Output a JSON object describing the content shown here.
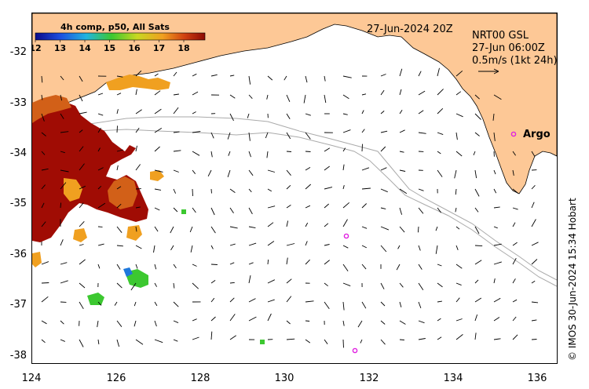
{
  "colorbar": {
    "title": "4h comp, p50, All Sats",
    "ticks": [
      "12",
      "13",
      "14",
      "15",
      "16",
      "17",
      "18"
    ]
  },
  "header": {
    "date": "27-Jun-2024 20Z",
    "product": "NRT00 GSL",
    "time": "27-Jun 06:00Z",
    "scale": "0.5m/s (1kt 24h)"
  },
  "argo_label": "Argo",
  "axes": {
    "lat_ticks": [
      "-32",
      "-33",
      "-34",
      "-35",
      "-36",
      "-37",
      "-38"
    ],
    "lon_ticks": [
      "124",
      "126",
      "128",
      "130",
      "132",
      "134",
      "136"
    ]
  },
  "credit": "© IMOS 30-Jun-2024 15:34 Hobart",
  "colors": {
    "land": "#fdc896",
    "sst_hot": "#a00c04",
    "sst_warm": "#d26018",
    "sst_orange": "#f0a020",
    "sst_green": "#3cc830",
    "sst_blue": "#1e78dc",
    "argo": "#e020e0"
  }
}
